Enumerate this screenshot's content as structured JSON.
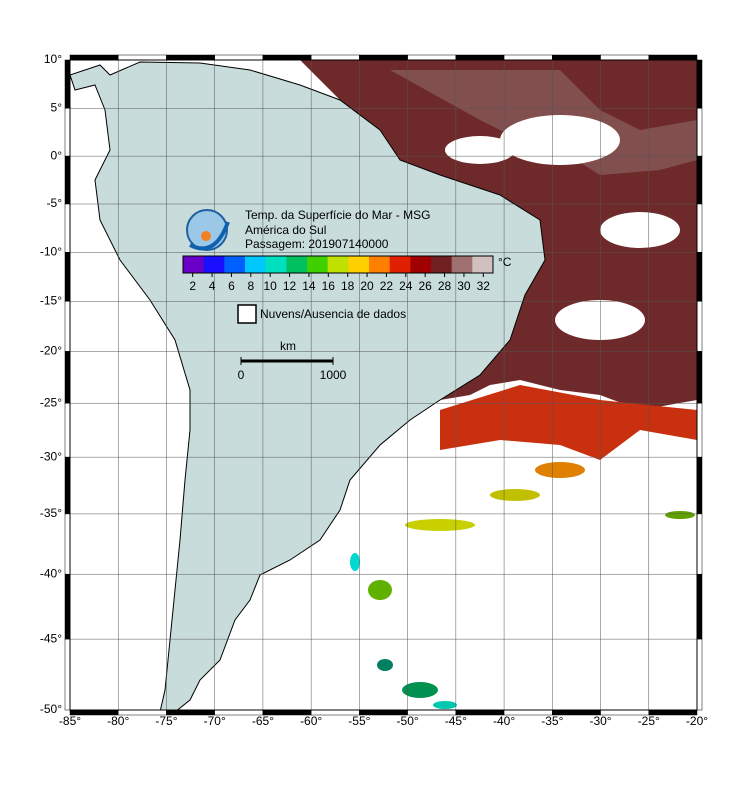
{
  "map": {
    "title_lines": [
      "Temp. da Superfície do Mar - MSG",
      "América do Sul",
      "Passagem: 201907140000"
    ],
    "xlim": [
      -85,
      -20
    ],
    "ylim": [
      -50,
      10
    ],
    "xticks": [
      {
        "value": -85,
        "label": "-85°"
      },
      {
        "value": -80,
        "label": "-80°"
      },
      {
        "value": -75,
        "label": "-75°"
      },
      {
        "value": -70,
        "label": "-70°"
      },
      {
        "value": -65,
        "label": "-65°"
      },
      {
        "value": -60,
        "label": "-60°"
      },
      {
        "value": -55,
        "label": "-55°"
      },
      {
        "value": -50,
        "label": "-50°"
      },
      {
        "value": -45,
        "label": "-45°"
      },
      {
        "value": -40,
        "label": "-40°"
      },
      {
        "value": -35,
        "label": "-35°"
      },
      {
        "value": -30,
        "label": "-30°"
      },
      {
        "value": -25,
        "label": "-25°"
      },
      {
        "value": -20,
        "label": "-20°"
      }
    ],
    "yticks": [
      {
        "value": 10,
        "label": "10°"
      },
      {
        "value": 5,
        "label": "5°"
      },
      {
        "value": 0,
        "label": "0°"
      },
      {
        "value": -5,
        "label": "-5°"
      },
      {
        "value": -10,
        "label": "-10°"
      },
      {
        "value": -15,
        "label": "-15°"
      },
      {
        "value": -20,
        "label": "-20°"
      },
      {
        "value": -25,
        "label": "-25°"
      },
      {
        "value": -30,
        "label": "-30°"
      },
      {
        "value": -35,
        "label": "-35°"
      },
      {
        "value": -40,
        "label": "-40°"
      },
      {
        "value": -45,
        "label": "-45°"
      },
      {
        "value": -50,
        "label": "-50°"
      }
    ],
    "colorbar": {
      "lim": [
        1,
        33
      ],
      "ticks": [
        2,
        4,
        6,
        8,
        10,
        12,
        14,
        16,
        18,
        20,
        22,
        24,
        26,
        28,
        30,
        32
      ],
      "unit": "°C",
      "colors": [
        "#6a00c8",
        "#1a10ff",
        "#0060ff",
        "#00c8ff",
        "#00e0c0",
        "#00c060",
        "#40d000",
        "#c0e000",
        "#ffd000",
        "#ff8000",
        "#e02000",
        "#a00000",
        "#702020",
        "#a07070",
        "#d0c0c0"
      ]
    },
    "legend": "Nuvens/Ausencia de dados",
    "scale": {
      "title": "km",
      "ticks": [
        "0",
        "1000"
      ]
    }
  }
}
